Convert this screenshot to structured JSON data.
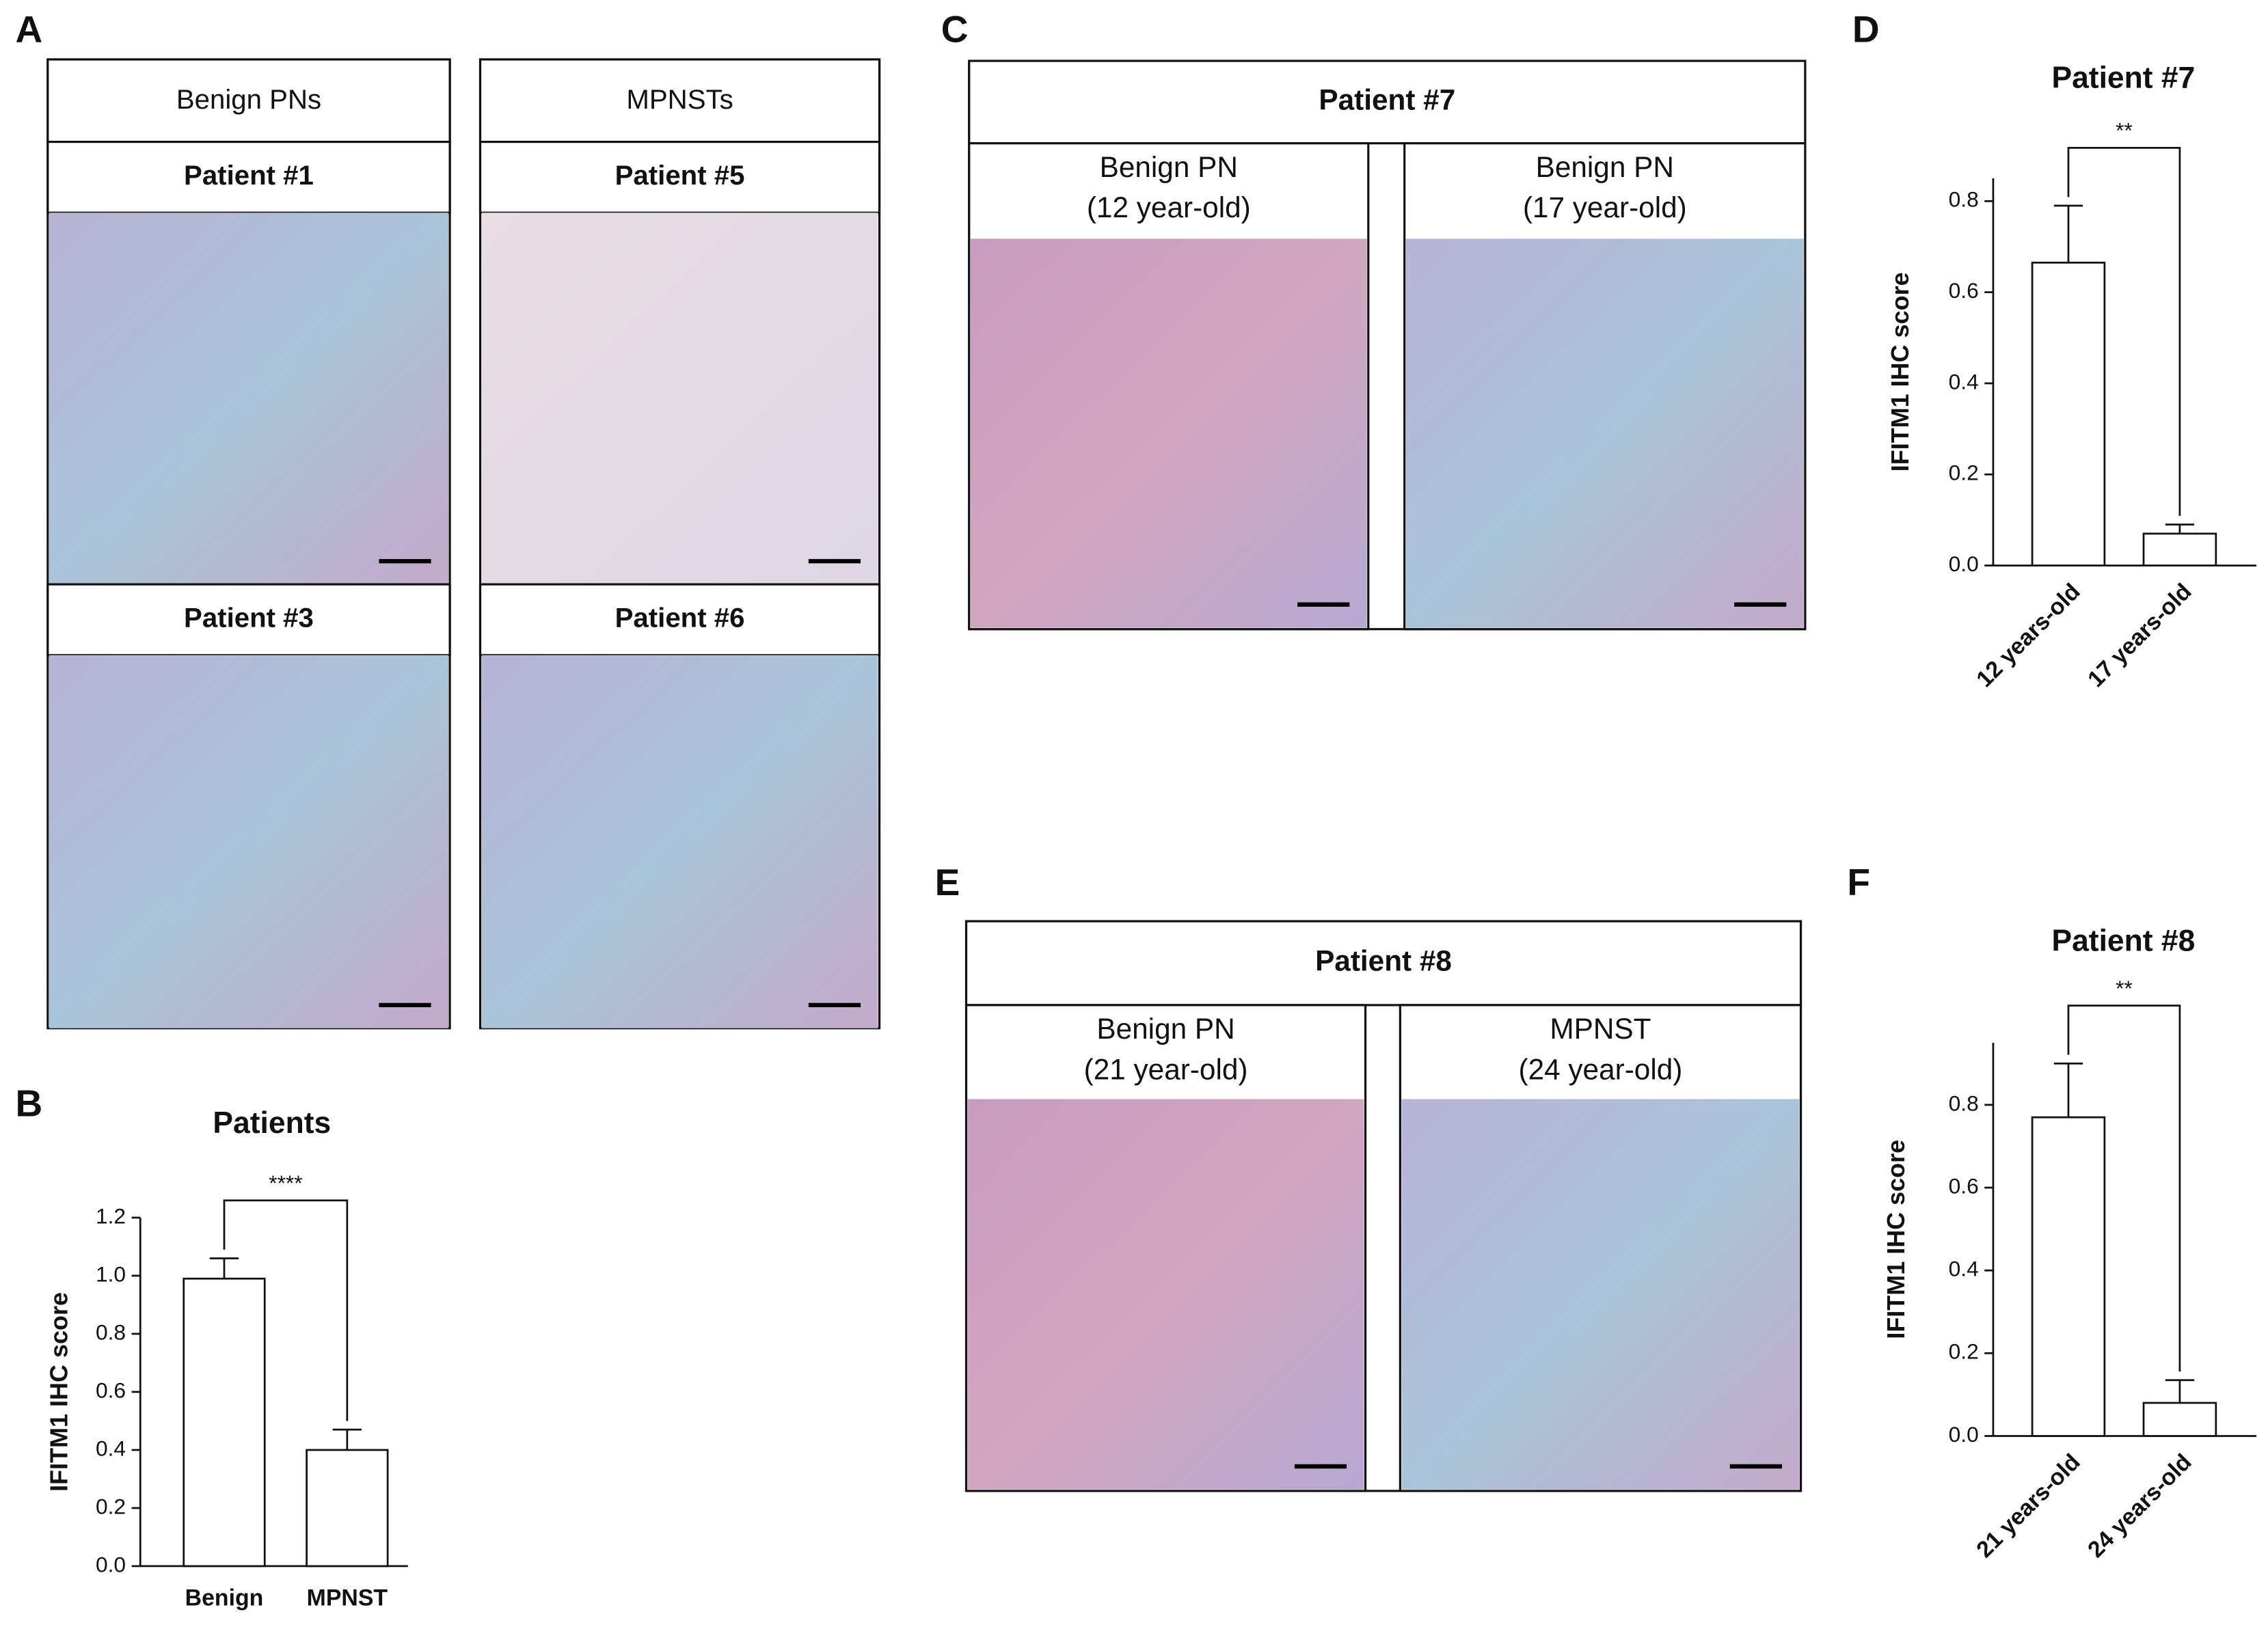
{
  "panel_labels": [
    "A",
    "B",
    "C",
    "D",
    "E",
    "F"
  ],
  "panel_a": {
    "columns": [
      "Benign PNs",
      "MPNSTs"
    ],
    "rows": [
      [
        "Patient #1",
        "Patient #5"
      ],
      [
        "Patient #3",
        "Patient #6"
      ]
    ]
  },
  "panel_c": {
    "title": "Patient #7",
    "columns": [
      {
        "name": "Benign PN",
        "age": "(12 year-old)"
      },
      {
        "name": "Benign PN",
        "age": "(17 year-old)"
      }
    ]
  },
  "panel_e": {
    "title": "Patient #8",
    "columns": [
      {
        "name": "Benign PN",
        "age": "(21 year-old)"
      },
      {
        "name": "MPNST",
        "age": "(24 year-old)"
      }
    ]
  },
  "chart_data": [
    {
      "type": "bar",
      "title": "Patients",
      "y_label": "IFITM1 IHC score",
      "categories": [
        "Benign",
        "MPNST"
      ],
      "values": [
        0.99,
        0.4
      ],
      "errors": [
        0.07,
        0.07
      ],
      "significance": "****",
      "color": "#ffffff",
      "ylim": [
        0,
        1.2
      ],
      "yticks": [
        {
          "value": 0,
          "label": "0.0"
        },
        0.2,
        0.4,
        0.6,
        0.8,
        {
          "value": 1,
          "label": "1.0"
        },
        1.2
      ]
    },
    {
      "type": "bar",
      "title": "Patient #7",
      "y_label": "IFITM1 IHC score",
      "categories": [
        "12 years-old",
        "17 years-old"
      ],
      "values": [
        0.665,
        0.07
      ],
      "errors": [
        0.125,
        0.02
      ],
      "significance": "**",
      "color": "#ffffff",
      "ylim": [
        0,
        0.85
      ],
      "yticks": [
        {
          "value": 0,
          "label": "0.0"
        },
        0.2,
        0.4,
        0.6,
        0.8
      ]
    },
    {
      "type": "bar",
      "title": "Patient #8",
      "y_label": "IFITM1 IHC score",
      "categories": [
        "21 years-old",
        "24 years-old"
      ],
      "values": [
        0.77,
        0.08
      ],
      "errors": [
        0.13,
        0.055
      ],
      "significance": "**",
      "color": "#ffffff",
      "ylim": [
        0,
        0.95
      ],
      "yticks": [
        {
          "value": 0,
          "label": "0.0"
        },
        0.2,
        0.4,
        0.6,
        0.8
      ]
    }
  ]
}
